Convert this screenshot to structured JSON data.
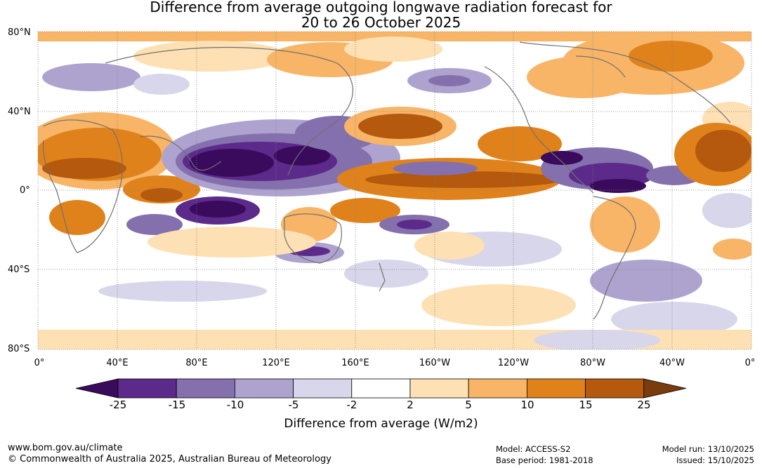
{
  "title": {
    "line1": "Difference from average outgoing longwave radiation forecast for",
    "line2": "20 to 26 October 2025"
  },
  "axes": {
    "lat_labels": [
      "80°N",
      "40°N",
      "0°",
      "40°S",
      "80°S"
    ],
    "lon_labels": [
      "0°",
      "40°E",
      "80°E",
      "120°E",
      "160°E",
      "160°W",
      "120°W",
      "80°W",
      "40°W",
      "0°"
    ]
  },
  "colorbar": {
    "title": "Difference from average (W/m2)",
    "ticks": [
      "-25",
      "-15",
      "-10",
      "-5",
      "-2",
      "2",
      "5",
      "10",
      "15",
      "25"
    ],
    "colors": [
      "#3a0a5c",
      "#5b2a8a",
      "#8470ad",
      "#aea3cf",
      "#d8d6ea",
      "#ffffff",
      "#fde0b3",
      "#f8b467",
      "#e0821b",
      "#b4590d",
      "#7a3b0d"
    ]
  },
  "footer": {
    "url": "www.bom.gov.au/climate",
    "copyright": "© Commonwealth of Australia 2025, Australian Bureau of Meteorology",
    "model": "Model: ACCESS-S2",
    "base_period": "Base period: 1981-2018",
    "model_run": "Model run: 13/10/2025",
    "issued": "Issued: 15/10/2025"
  }
}
